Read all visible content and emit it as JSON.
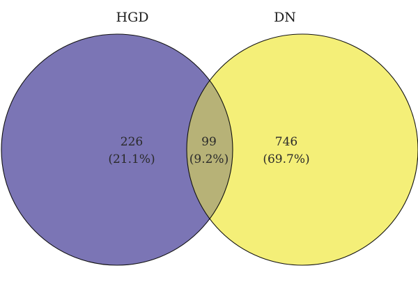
{
  "chart_data": {
    "type": "venn",
    "sets": [
      {
        "name": "HGD",
        "color": "#7b75b5"
      },
      {
        "name": "DN",
        "color": "#f4ef78"
      }
    ],
    "overlap_color": "#b7b277",
    "regions": [
      {
        "id": "hgd-only",
        "sets": [
          "HGD"
        ],
        "count": "226",
        "percent": "(21.1%)"
      },
      {
        "id": "both",
        "sets": [
          "HGD",
          "DN"
        ],
        "count": "99",
        "percent": "(9.2%)"
      },
      {
        "id": "dn-only",
        "sets": [
          "DN"
        ],
        "count": "746",
        "percent": "(69.7%)"
      }
    ]
  }
}
